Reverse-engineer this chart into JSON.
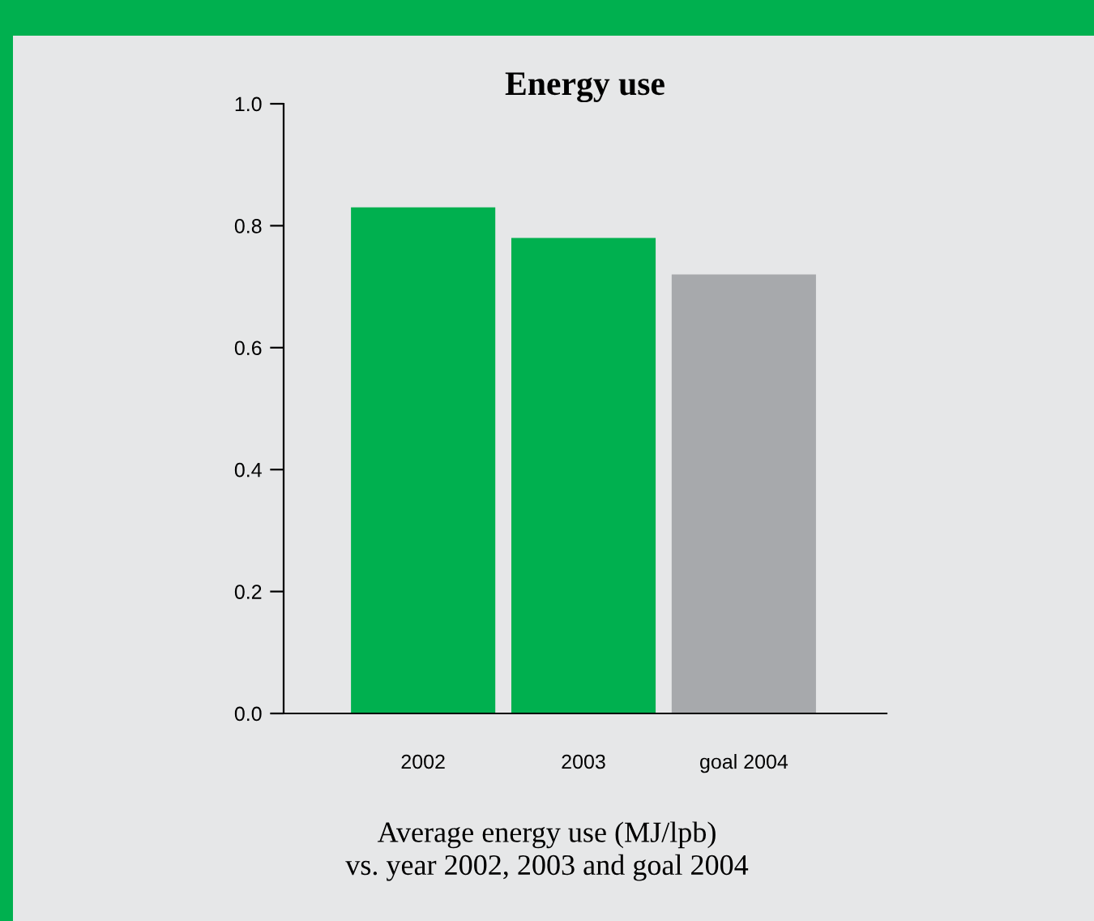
{
  "chart_data": {
    "type": "bar",
    "title": "Energy use",
    "categories": [
      "2002",
      "2003",
      "goal 2004"
    ],
    "values": [
      0.83,
      0.78,
      0.72
    ],
    "colors": [
      "#00b04f",
      "#00b04f",
      "#a7a9ac"
    ],
    "ylim": [
      0,
      1.0
    ],
    "yticks": [
      {
        "value": 0,
        "label": "0.0"
      },
      {
        "value": 0.2,
        "label": "0.2"
      },
      {
        "value": 0.4,
        "label": "0.4"
      },
      {
        "value": 0.6,
        "label": "0.6"
      },
      {
        "value": 0.8,
        "label": "0.8"
      },
      {
        "value": 1.0,
        "label": "1.0"
      }
    ],
    "grid": false,
    "legend": false,
    "annotations": [
      "Average energy use (MJ/lpb)\nvs. year 2002, 2003 and goal 2004"
    ]
  }
}
